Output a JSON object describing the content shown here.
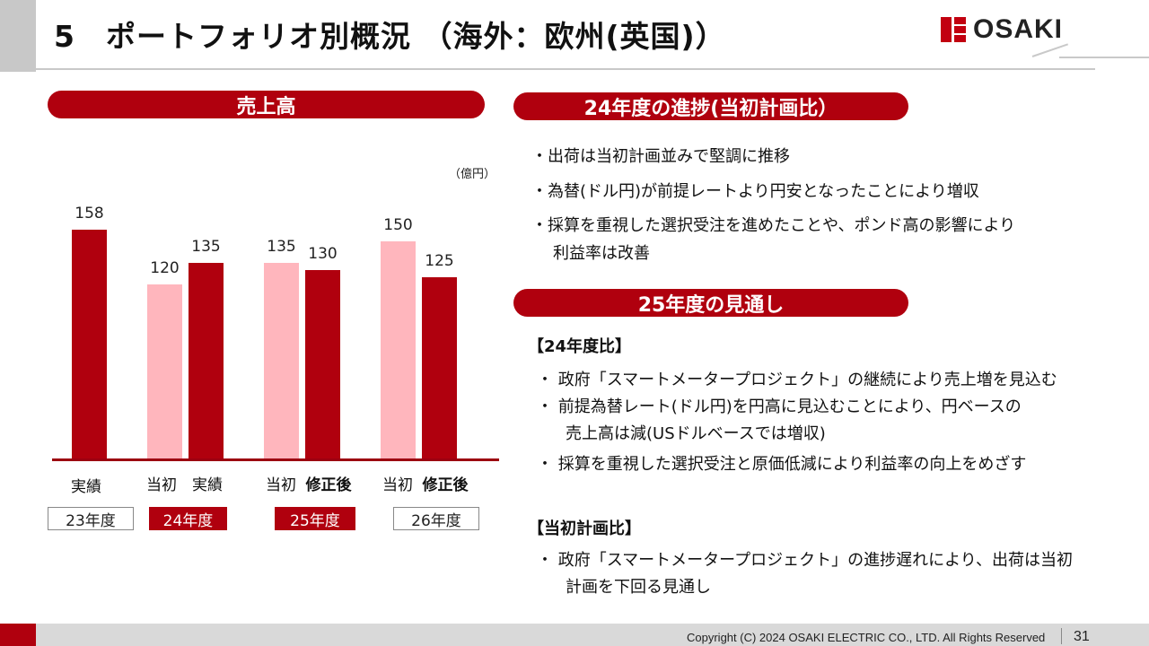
{
  "header": {
    "title": "5　ポートフォリオ別概況 （海外：欧州(英国)）",
    "logo_text": "OSAKI"
  },
  "sales": {
    "pill": "売上高",
    "unit": "（億円）"
  },
  "chart_data": {
    "type": "bar",
    "ylim": [
      0,
      170
    ],
    "bars": [
      {
        "group": "23年度",
        "label": "実績",
        "value": 158,
        "color": "#b0000e"
      },
      {
        "group": "24年度",
        "label": "当初",
        "value": 120,
        "color": "#ffb6bd"
      },
      {
        "group": "24年度",
        "label": "実績",
        "value": 135,
        "color": "#b0000e"
      },
      {
        "group": "25年度",
        "label": "当初",
        "value": 135,
        "color": "#ffb6bd"
      },
      {
        "group": "25年度",
        "label": "修正後",
        "value": 130,
        "color": "#b0000e"
      },
      {
        "group": "26年度",
        "label": "当初",
        "value": 150,
        "color": "#ffb6bd"
      },
      {
        "group": "26年度",
        "label": "修正後",
        "value": 125,
        "color": "#b0000e"
      }
    ],
    "years": [
      "23年度",
      "24年度",
      "25年度",
      "26年度"
    ]
  },
  "progress": {
    "pill": "24年度の進捗(当初計画比）",
    "items": [
      "・出荷は当初計画並みで堅調に推移",
      "・為替(ドル円)が前提レートより円安となったことにより増収",
      "・採算を重視した選択受注を進めたことや、ポンド高の影響により",
      "利益率は改善"
    ]
  },
  "outlook": {
    "pill": "25年度の見通し",
    "head1": "【24年度比】",
    "items1": [
      "・ 政府「スマートメータープロジェクト」の継続により売上増を見込む",
      "・ 前提為替レート(ドル円)を円高に見込むことにより、円ベースの",
      "売上高は減(USドルベースでは増収)",
      "・ 採算を重視した選択受注と原価低減により利益率の向上をめざす"
    ],
    "head2": "【当初計画比】",
    "items2": [
      "・ 政府「スマートメータープロジェクト」の進捗遅れにより、出荷は当初",
      "計画を下回る見通し"
    ]
  },
  "footer": {
    "copyright": "Copyright (C) 2024 OSAKI ELECTRIC CO., LTD. All Rights Reserved",
    "page": "31"
  }
}
